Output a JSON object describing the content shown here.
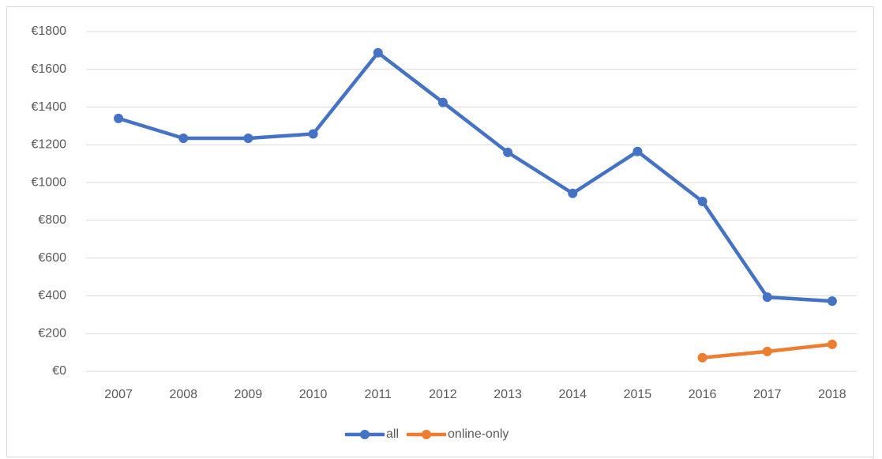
{
  "chart_data": {
    "type": "line",
    "categories": [
      "2007",
      "2008",
      "2009",
      "2010",
      "2011",
      "2012",
      "2013",
      "2014",
      "2015",
      "2016",
      "2017",
      "2018"
    ],
    "series": [
      {
        "name": "all",
        "color": "#4472c4",
        "values": [
          1340,
          1235,
          1235,
          1258,
          1688,
          1425,
          1160,
          943,
          1165,
          900,
          393,
          372
        ]
      },
      {
        "name": "online-only",
        "color": "#ed7d31",
        "values": [
          null,
          null,
          null,
          null,
          null,
          null,
          null,
          null,
          null,
          72,
          105,
          143
        ]
      }
    ],
    "ylim": [
      0,
      1800
    ],
    "yticks": [
      {
        "value": 0,
        "label": "€0"
      },
      {
        "value": 200,
        "label": "€200"
      },
      {
        "value": 400,
        "label": "€400"
      },
      {
        "value": 600,
        "label": "€600"
      },
      {
        "value": 800,
        "label": "€800"
      },
      {
        "value": 1000,
        "label": "€1000"
      },
      {
        "value": 1200,
        "label": "€1200"
      },
      {
        "value": 1400,
        "label": "€1400"
      },
      {
        "value": 1600,
        "label": "€1600"
      },
      {
        "value": 1800,
        "label": "€1800"
      }
    ],
    "grid": true,
    "legend": "bottom"
  }
}
